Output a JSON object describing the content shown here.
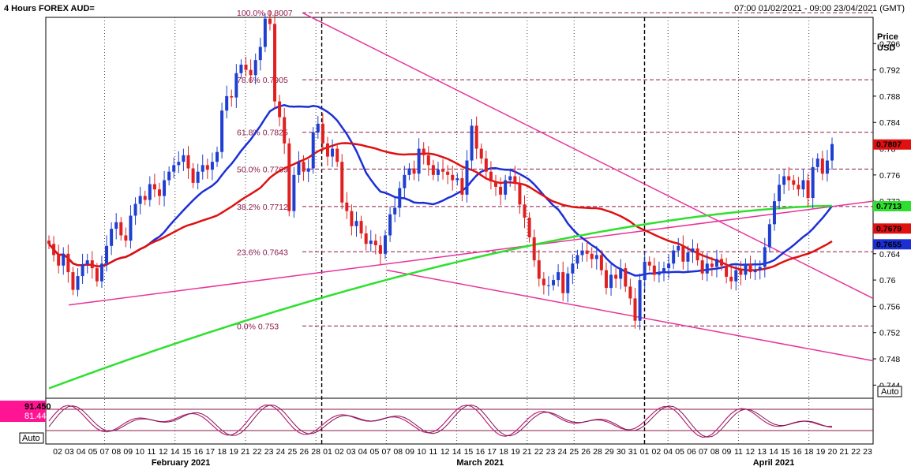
{
  "header": {
    "title": "4 Hours FOREX AUD=",
    "range": "07:00 01/02/2021 - 09:00 23/04/2021 (GMT)"
  },
  "axis": {
    "price_label": "Price",
    "currency_label": "USD",
    "auto_button": "Auto",
    "osc_auto_button": "Auto"
  },
  "colors": {
    "candle_up": "#1f3fd0",
    "candle_down": "#e02020",
    "ma_blue": "#1c2fd6",
    "ma_red": "#e01010",
    "ma_green": "#2ee02e",
    "fib_line": "#8b1a4a",
    "trend_line": "#e8339a",
    "stoch_line": "#c0207a"
  },
  "badges": [
    {
      "text": "0.7807",
      "color": "#e01010",
      "value": 0.7807
    },
    {
      "text": "0.7713",
      "color": "#2ee02e",
      "value": 0.7713
    },
    {
      "text": "0.7679",
      "color": "#e01010",
      "value": 0.7679
    },
    {
      "text": "0.7655",
      "color": "#1c2fd6",
      "value": 0.7655
    }
  ],
  "oscillator": {
    "label_top": "91.450",
    "label_bottom": "81.443"
  },
  "chart_data": {
    "type": "candlestick",
    "ylim": [
      0.742,
      0.8
    ],
    "yticks": [
      "0.796",
      "0.792",
      "0.788",
      "0.784",
      "0.78",
      "0.776",
      "0.772",
      "0.768",
      "0.764",
      "0.76",
      "0.756",
      "0.752",
      "0.748",
      "0.744"
    ],
    "xticks": [
      "02",
      "03",
      "04",
      "05",
      "07",
      "08",
      "09",
      "10",
      "11",
      "12",
      "14",
      "15",
      "16",
      "17",
      "18",
      "19",
      "21",
      "22",
      "23",
      "24",
      "25",
      "26",
      "28",
      "01",
      "02",
      "03",
      "04",
      "05",
      "07",
      "08",
      "09",
      "10",
      "11",
      "12",
      "14",
      "15",
      "16",
      "17",
      "18",
      "19",
      "21",
      "22",
      "23",
      "24",
      "25",
      "26",
      "28",
      "29",
      "30",
      "31",
      "01",
      "02",
      "04",
      "05",
      "06",
      "07",
      "08",
      "09",
      "11",
      "12",
      "13",
      "14",
      "15",
      "16",
      "18",
      "19",
      "20",
      "21",
      "22",
      "23"
    ],
    "month_labels": [
      "February 2021",
      "March 2021",
      "April 2021"
    ],
    "fib_levels": [
      {
        "label": "100.0%",
        "value": 0.8007,
        "text": "0.8007"
      },
      {
        "label": "78.6%",
        "value": 0.7905,
        "text": "0.7905"
      },
      {
        "label": "61.8%",
        "value": 0.7825,
        "text": "0.7825"
      },
      {
        "label": "50.0%",
        "value": 0.7769,
        "text": "0.7769"
      },
      {
        "label": "38.2%",
        "value": 0.7712,
        "text": "0.7712"
      },
      {
        "label": "23.6%",
        "value": 0.7643,
        "text": "0.7643"
      },
      {
        "label": "0.0%",
        "value": 0.753,
        "text": "0.753"
      }
    ],
    "closes": [
      0.7655,
      0.7638,
      0.7622,
      0.764,
      0.7612,
      0.7585,
      0.7606,
      0.7624,
      0.763,
      0.7618,
      0.7598,
      0.7625,
      0.7652,
      0.7678,
      0.7688,
      0.7668,
      0.766,
      0.7698,
      0.7716,
      0.7728,
      0.7722,
      0.7746,
      0.7738,
      0.7728,
      0.7752,
      0.7765,
      0.7775,
      0.778,
      0.779,
      0.777,
      0.7748,
      0.7765,
      0.7775,
      0.7768,
      0.778,
      0.7795,
      0.7858,
      0.788,
      0.7878,
      0.7915,
      0.7928,
      0.792,
      0.7912,
      0.7935,
      0.7955,
      0.7998,
      0.799,
      0.7872,
      0.7848,
      0.7808,
      0.7705,
      0.776,
      0.778,
      0.7765,
      0.777,
      0.7825,
      0.7838,
      0.7808,
      0.7788,
      0.78,
      0.778,
      0.7718,
      0.7705,
      0.7682,
      0.769,
      0.7671,
      0.7655,
      0.766,
      0.7653,
      0.764,
      0.7668,
      0.77,
      0.771,
      0.774,
      0.776,
      0.777,
      0.7762,
      0.78,
      0.779,
      0.7775,
      0.776,
      0.7768,
      0.7765,
      0.776,
      0.7752,
      0.7755,
      0.773,
      0.7782,
      0.7835,
      0.78,
      0.7785,
      0.7765,
      0.775,
      0.7742,
      0.773,
      0.7752,
      0.7758,
      0.7748,
      0.7715,
      0.7695,
      0.7665,
      0.763,
      0.7602,
      0.7592,
      0.7592,
      0.76,
      0.7612,
      0.758,
      0.761,
      0.7625,
      0.7638,
      0.7645,
      0.764,
      0.7632,
      0.7638,
      0.7615,
      0.7588,
      0.7608,
      0.7602,
      0.7618,
      0.759,
      0.7572,
      0.7538,
      0.76,
      0.7628,
      0.7622,
      0.7608,
      0.7612,
      0.7618,
      0.7625,
      0.7645,
      0.7652,
      0.7628,
      0.7642,
      0.7648,
      0.763,
      0.761,
      0.7625,
      0.762,
      0.7632,
      0.7622,
      0.7605,
      0.7598,
      0.7615,
      0.7608,
      0.7625,
      0.7612,
      0.7615,
      0.762,
      0.765,
      0.7685,
      0.772,
      0.7745,
      0.7758,
      0.7752,
      0.7745,
      0.7738,
      0.7752,
      0.7725,
      0.7772,
      0.7785,
      0.7762,
      0.7782,
      0.7807
    ]
  }
}
